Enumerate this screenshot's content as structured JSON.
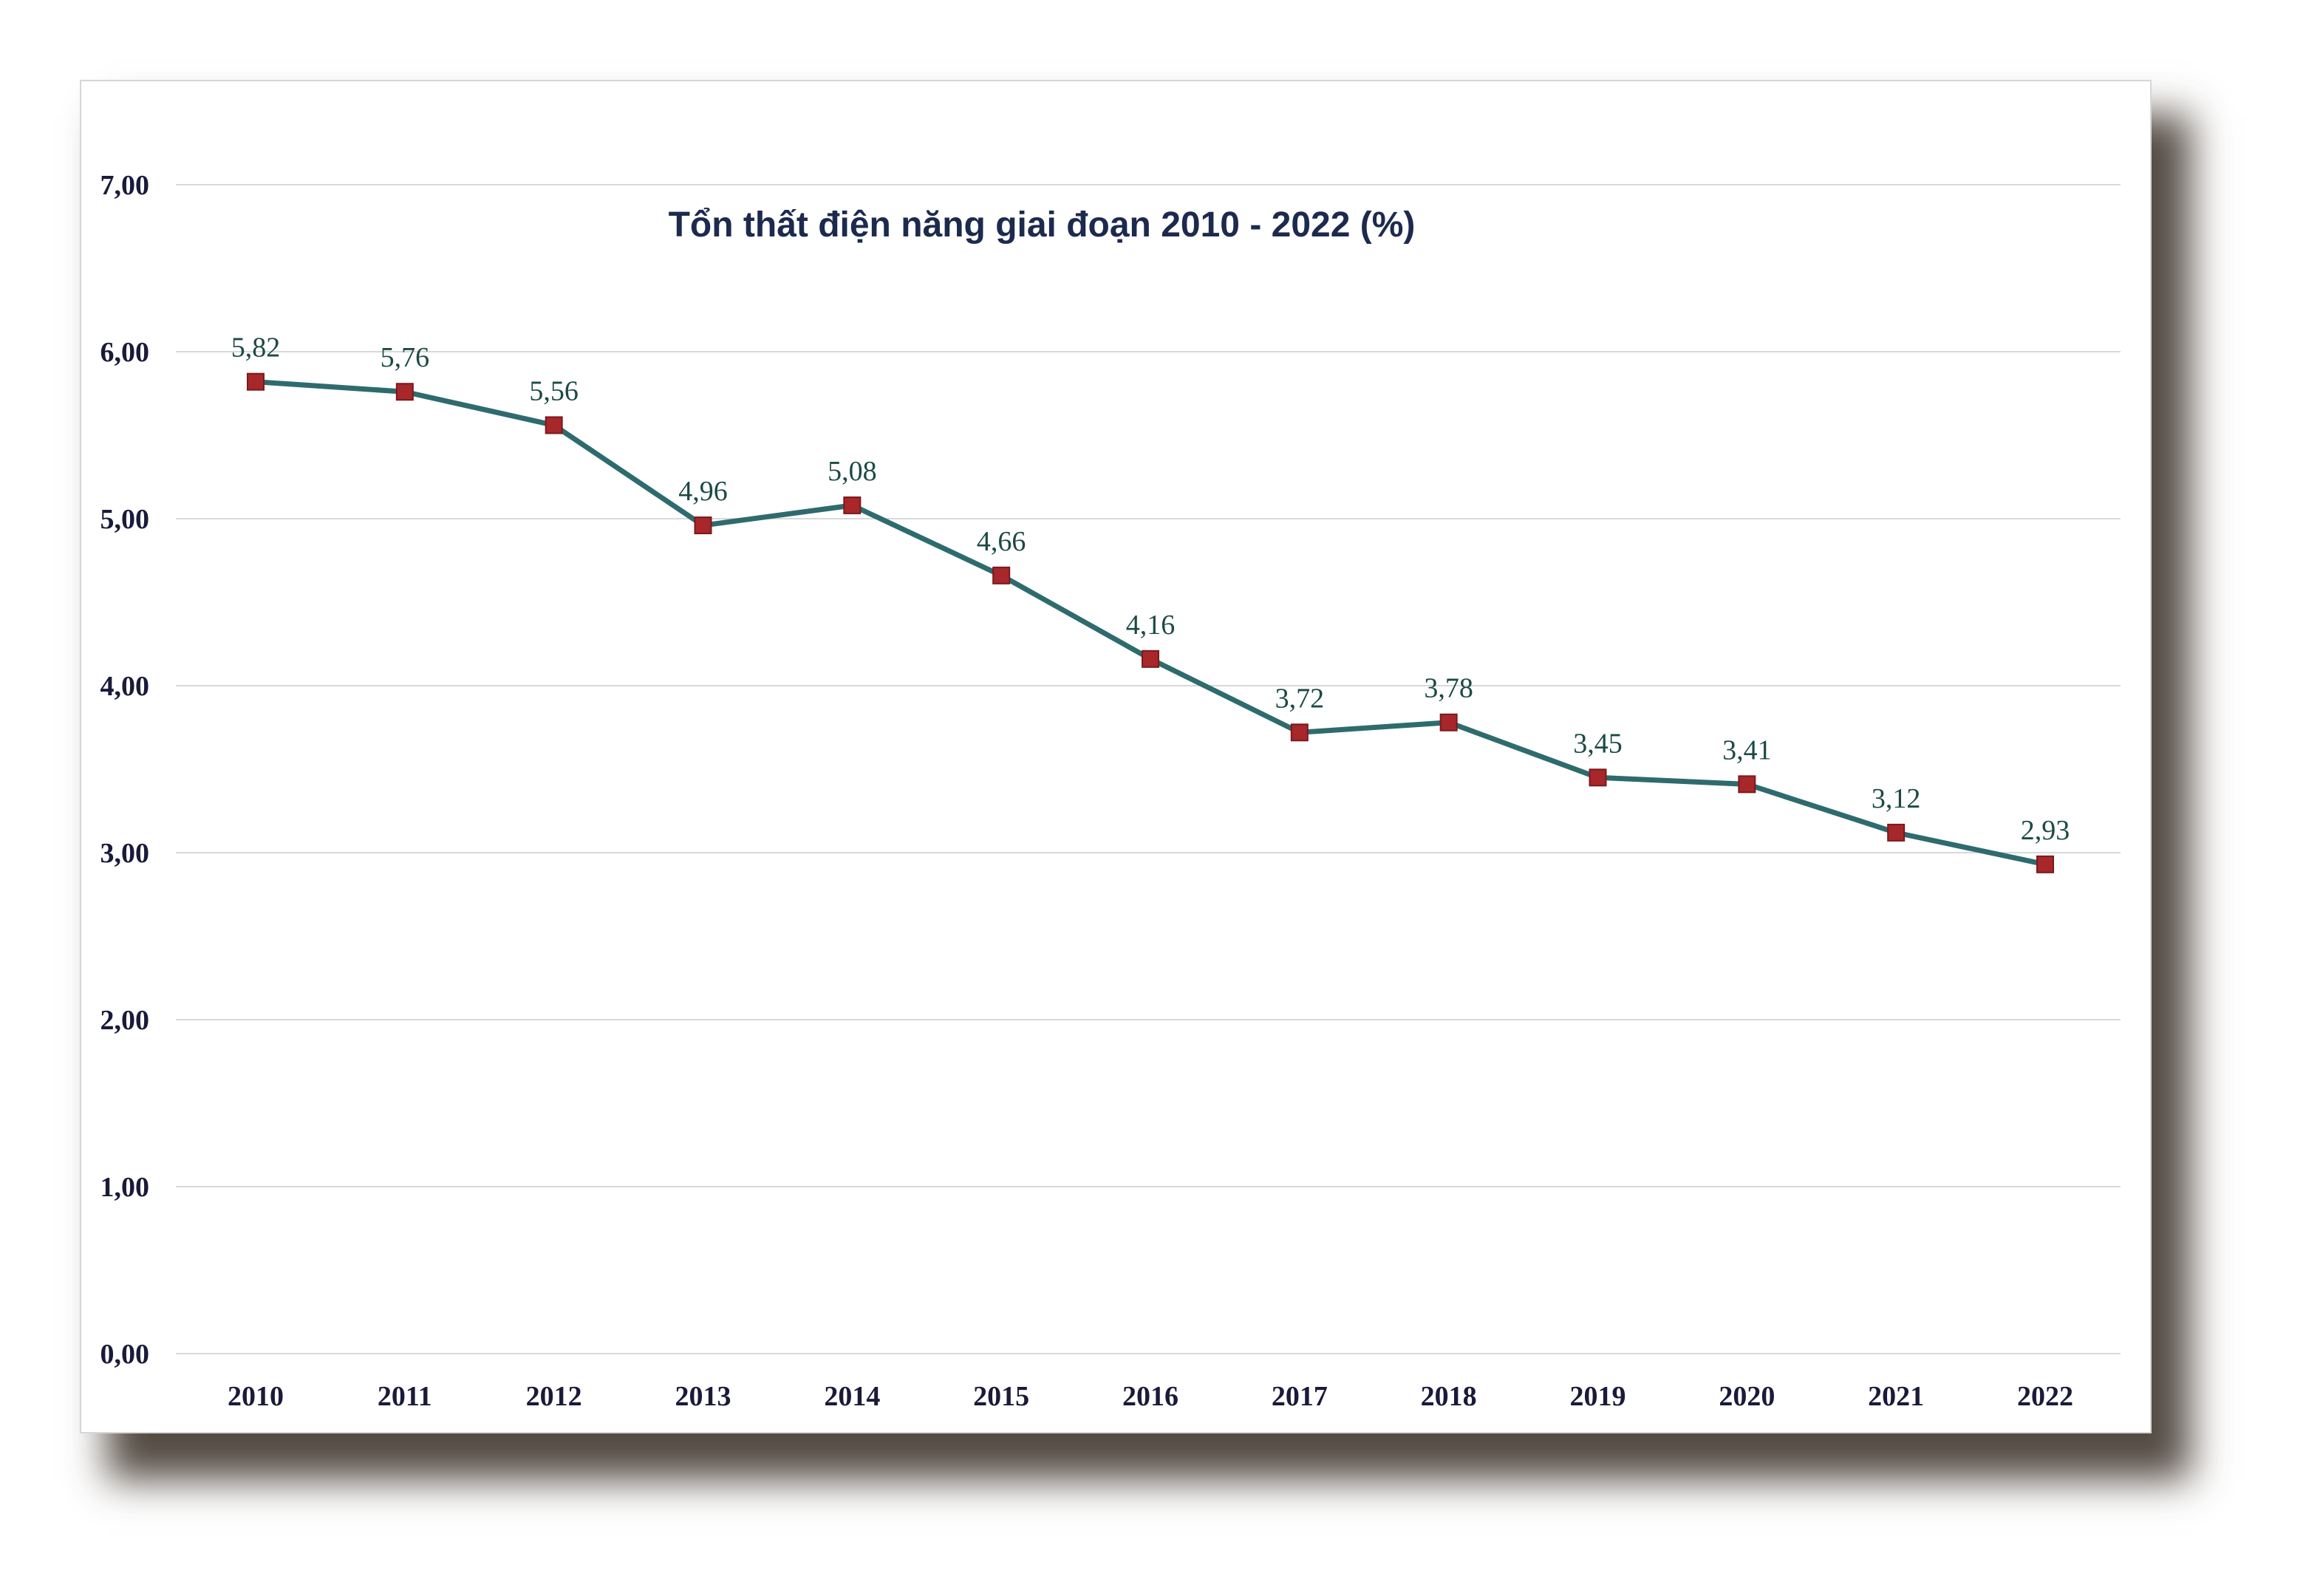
{
  "chart_data": {
    "type": "line",
    "title": "Tổn thất điện năng giai đoạn 2010 - 2022 (%)",
    "xlabel": "",
    "ylabel": "",
    "categories": [
      "2010",
      "2011",
      "2012",
      "2013",
      "2014",
      "2015",
      "2016",
      "2017",
      "2018",
      "2019",
      "2020",
      "2021",
      "2022"
    ],
    "series": [
      {
        "values": [
          5.82,
          5.76,
          5.56,
          4.96,
          5.08,
          4.66,
          4.16,
          3.72,
          3.78,
          3.45,
          3.41,
          3.12,
          2.93
        ],
        "data_labels": [
          "5,82",
          "5,76",
          "5,56",
          "4,96",
          "5,08",
          "4,66",
          "4,16",
          "3,72",
          "3,78",
          "3,45",
          "3,41",
          "3,12",
          "2,93"
        ],
        "line_color": "#2e6b6e",
        "marker_color": "#a8272a",
        "marker": "square"
      }
    ],
    "ylim": [
      0,
      7
    ],
    "y_ticks": [
      "0,00",
      "1,00",
      "2,00",
      "3,00",
      "4,00",
      "5,00",
      "6,00",
      "7,00"
    ],
    "grid": true,
    "legend": "none"
  }
}
